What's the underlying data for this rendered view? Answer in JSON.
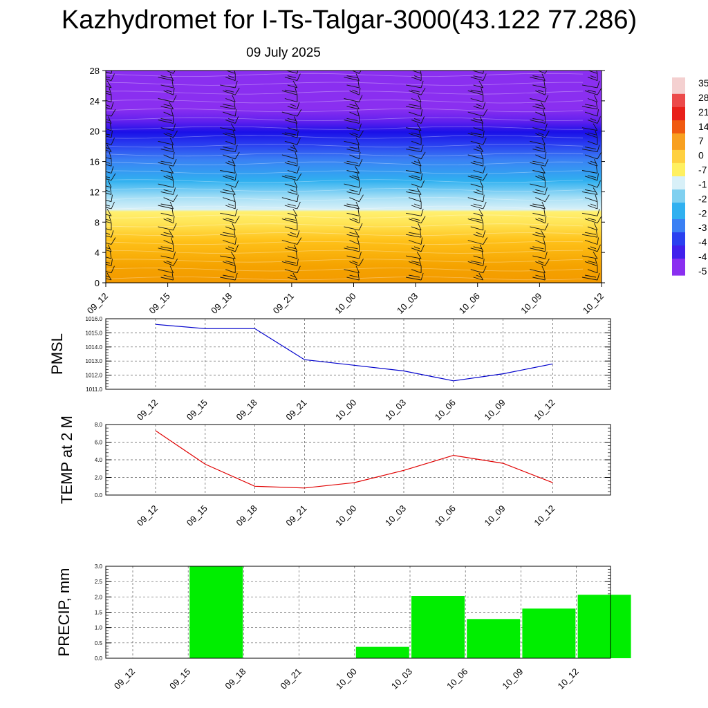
{
  "title": "Kazhydromet for I-Ts-Talgar-3000(43.122 77.286)",
  "subtitle": "09 July 2025",
  "chart_data": [
    {
      "type": "heatmap",
      "name": "Vertical temperature cross-section with wind barbs",
      "x_ticks": [
        "09_12",
        "09_15",
        "09_18",
        "09_21",
        "10_00",
        "10_03",
        "10_06",
        "10_09",
        "10_12"
      ],
      "y_ticks": [
        "0",
        "4",
        "8",
        "12",
        "16",
        "20",
        "24",
        "28"
      ],
      "ylim": [
        0,
        28
      ],
      "colorbar_labels": [
        "35",
        "28",
        "21",
        "14",
        "7",
        "0",
        "-7",
        "-1",
        "-2",
        "-2",
        "-3",
        "-4",
        "-4",
        "-5"
      ],
      "colors": {
        "warm": "#f5a300",
        "yellow": "#fff070",
        "pale": "#d8f0f8",
        "cyan": "#30b0f0",
        "blue": "#2a40f0",
        "deep": "#1a10e8",
        "violet": "#8a2ff0",
        "red": "#e8201a"
      }
    },
    {
      "type": "line",
      "ylabel": "PMSL",
      "categories": [
        "09_12",
        "09_15",
        "09_18",
        "09_21",
        "10_00",
        "10_03",
        "10_06",
        "10_09",
        "10_12"
      ],
      "y_ticks": [
        "1011.0",
        "1012.0",
        "1013.0",
        "1014.0",
        "1015.0",
        "1016.0"
      ],
      "ylim": [
        1011,
        1016
      ],
      "values": [
        1015.6,
        1015.3,
        1015.3,
        1013.1,
        1012.7,
        1012.3,
        1011.6,
        1012.1,
        1012.8
      ],
      "color": "#0000cc",
      "grid": true
    },
    {
      "type": "line",
      "ylabel": "TEMP at 2 M",
      "categories": [
        "09_12",
        "09_15",
        "09_18",
        "09_21",
        "10_00",
        "10_03",
        "10_06",
        "10_09",
        "10_12"
      ],
      "y_ticks": [
        "0.0",
        "2.0",
        "4.0",
        "6.0",
        "8.0"
      ],
      "ylim": [
        0,
        8
      ],
      "values": [
        7.3,
        3.5,
        1.0,
        0.8,
        1.4,
        2.8,
        4.5,
        3.6,
        1.4
      ],
      "color": "#e00000",
      "grid": true
    },
    {
      "type": "bar",
      "ylabel": "PRECIP, mm",
      "categories": [
        "09_12",
        "09_15",
        "09_18",
        "09_21",
        "10_00",
        "10_03",
        "10_06",
        "10_09",
        "10_12"
      ],
      "y_ticks": [
        "0.0",
        "0.5",
        "1.0",
        "1.5",
        "2.0",
        "2.5",
        "3.0"
      ],
      "ylim": [
        0,
        3
      ],
      "values": [
        0,
        3.0,
        0,
        0,
        0.37,
        2.03,
        1.28,
        1.62,
        2.07
      ],
      "color": "#00ee00",
      "grid": true
    }
  ]
}
